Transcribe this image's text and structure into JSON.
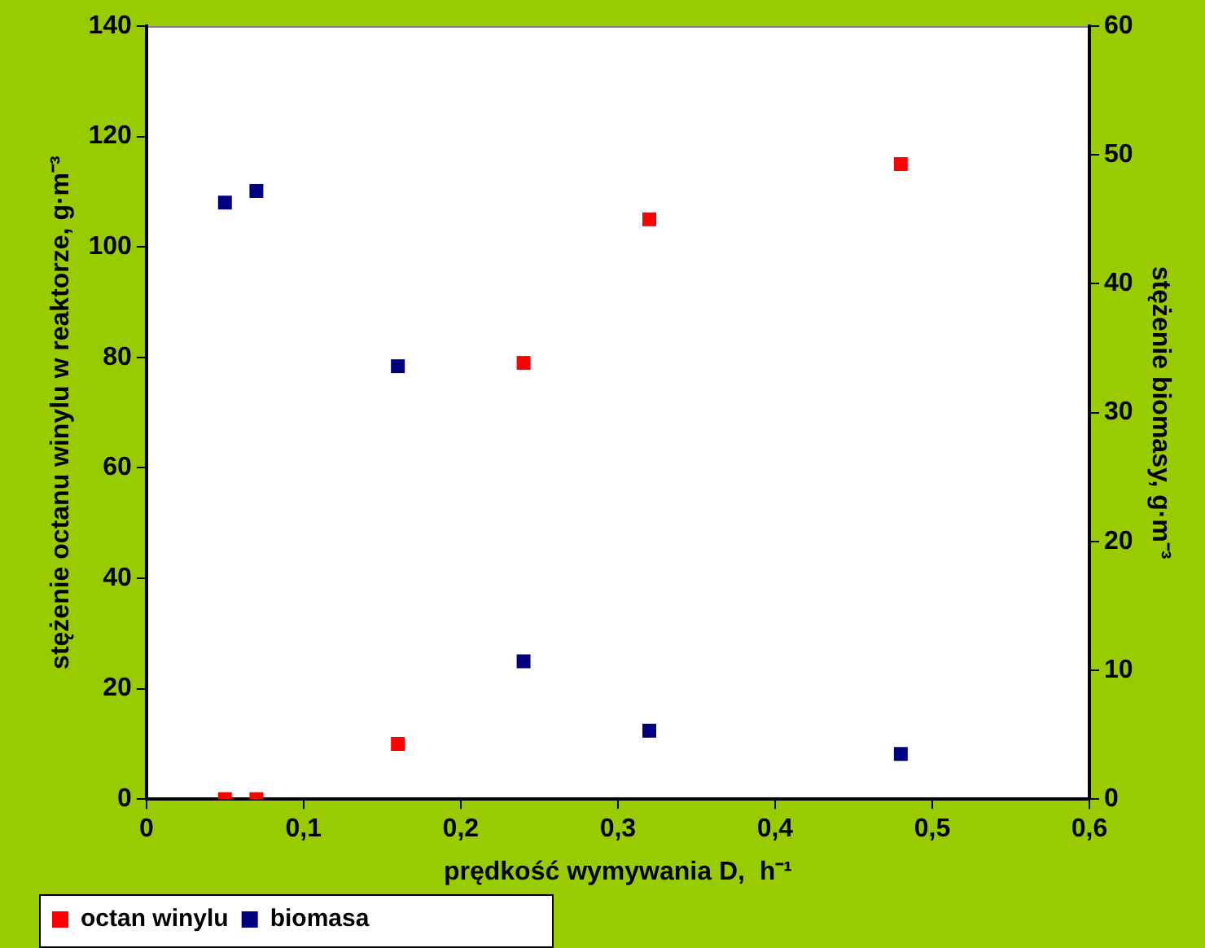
{
  "chart_data": {
    "type": "scatter",
    "xlabel": "prędkość wymywania D,  h⁻¹",
    "ylabel": "stężenie octanu winylu w reaktorze, g·m⁻³",
    "y2label": "stężenie biomasy, g·m⁻³",
    "xlim": [
      0,
      0.6
    ],
    "xticks": [
      0,
      {
        "value": 0.1,
        "label": "0,1"
      },
      {
        "value": 0.2,
        "label": "0,2"
      },
      {
        "value": 0.3,
        "label": "0,3"
      },
      {
        "value": 0.4,
        "label": "0,4"
      },
      {
        "value": 0.5,
        "label": "0,5"
      },
      {
        "value": 0.6,
        "label": "0,6"
      }
    ],
    "ylim": [
      0,
      140
    ],
    "yticks": [
      0,
      20,
      40,
      60,
      80,
      100,
      120,
      140
    ],
    "y2lim": [
      0,
      60
    ],
    "y2ticks": [
      0,
      10,
      20,
      30,
      40,
      50,
      60
    ],
    "grid": false,
    "legend": "bottom",
    "marker": "square",
    "series": [
      {
        "name": "octan winylu",
        "color": "#ff0000",
        "x": [
          0.05,
          0.07,
          0.16,
          0.24,
          0.32,
          0.48
        ],
        "values": [
          0,
          0,
          10,
          79,
          105,
          115
        ]
      },
      {
        "name": "biomasa",
        "color": "#000080",
        "axis": "y2",
        "x": [
          0.05,
          0.07,
          0.16,
          0.24,
          0.32,
          0.48
        ],
        "values": [
          46.3,
          47.2,
          33.6,
          10.7,
          5.3,
          3.5
        ]
      }
    ]
  }
}
